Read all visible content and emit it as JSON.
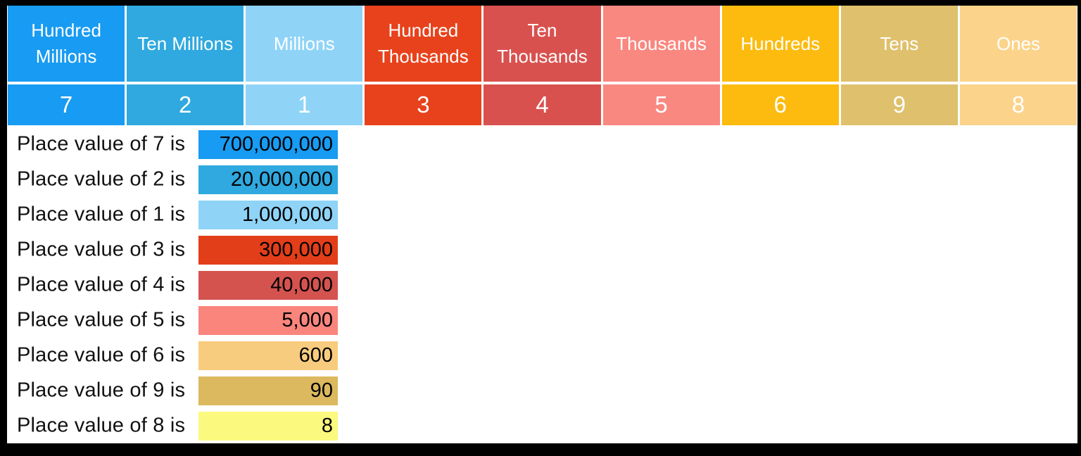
{
  "table": {
    "columns": [
      {
        "key": "hundred-millions",
        "label": "Hundred Millions",
        "digit": "7",
        "color": "#189BF2"
      },
      {
        "key": "ten-millions",
        "label": "Ten Millions",
        "digit": "2",
        "color": "#2FA9DF"
      },
      {
        "key": "millions",
        "label": "Millions",
        "digit": "1",
        "color": "#8FD4F7"
      },
      {
        "key": "hundred-thousands",
        "label": "Hundred Thousands",
        "digit": "3",
        "color": "#E7421C"
      },
      {
        "key": "ten-thousands",
        "label": "Ten Thousands",
        "digit": "4",
        "color": "#D9514E"
      },
      {
        "key": "thousands",
        "label": "Thousands",
        "digit": "5",
        "color": "#F98880"
      },
      {
        "key": "hundreds",
        "label": "Hundreds",
        "digit": "6",
        "color": "#FCBB0E"
      },
      {
        "key": "tens",
        "label": "Tens",
        "digit": "9",
        "color": "#DFC06C"
      },
      {
        "key": "ones",
        "label": "Ones",
        "digit": "8",
        "color": "#FBD38A"
      }
    ]
  },
  "rows": [
    {
      "label": "Place value of 7 is",
      "value": "700,000,000",
      "color": "#189BF2"
    },
    {
      "label": "Place value of 2 is",
      "value": "20,000,000",
      "color": "#2FA9DF"
    },
    {
      "label": "Place value of 1 is",
      "value": "1,000,000",
      "color": "#8FD4F7"
    },
    {
      "label": "Place value of 3 is",
      "value": "300,000",
      "color": "#E23E19"
    },
    {
      "label": "Place value of 4 is",
      "value": "40,000",
      "color": "#D4534F"
    },
    {
      "label": "Place value of 5 is",
      "value": "5,000",
      "color": "#F9857C"
    },
    {
      "label": "Place value of 6 is",
      "value": "600",
      "color": "#F8CC7E"
    },
    {
      "label": "Place value of 9 is",
      "value": "90",
      "color": "#DCB95E"
    },
    {
      "label": "Place value of 8 is",
      "value": "8",
      "color": "#FBF97E"
    }
  ],
  "colors": {
    "frame": "#000000",
    "background": "#FFFFFF",
    "header_text": "#FFFFFF",
    "digit_text": "#FFFFFF",
    "label_text": "#111111",
    "bar_text": "#000000"
  },
  "chart_data": {
    "type": "table",
    "title": "",
    "columns": [
      "Hundred Millions",
      "Ten Millions",
      "Millions",
      "Hundred Thousands",
      "Ten Thousands",
      "Thousands",
      "Hundreds",
      "Tens",
      "Ones"
    ],
    "digits": [
      7,
      2,
      1,
      3,
      4,
      5,
      6,
      9,
      8
    ],
    "place_values": [
      700000000,
      20000000,
      1000000,
      300000,
      40000,
      5000,
      600,
      90,
      8
    ],
    "value_labels": [
      "700,000,000",
      "20,000,000",
      "1,000,000",
      "300,000",
      "40,000",
      "5,000",
      "600",
      "90",
      "8"
    ]
  }
}
